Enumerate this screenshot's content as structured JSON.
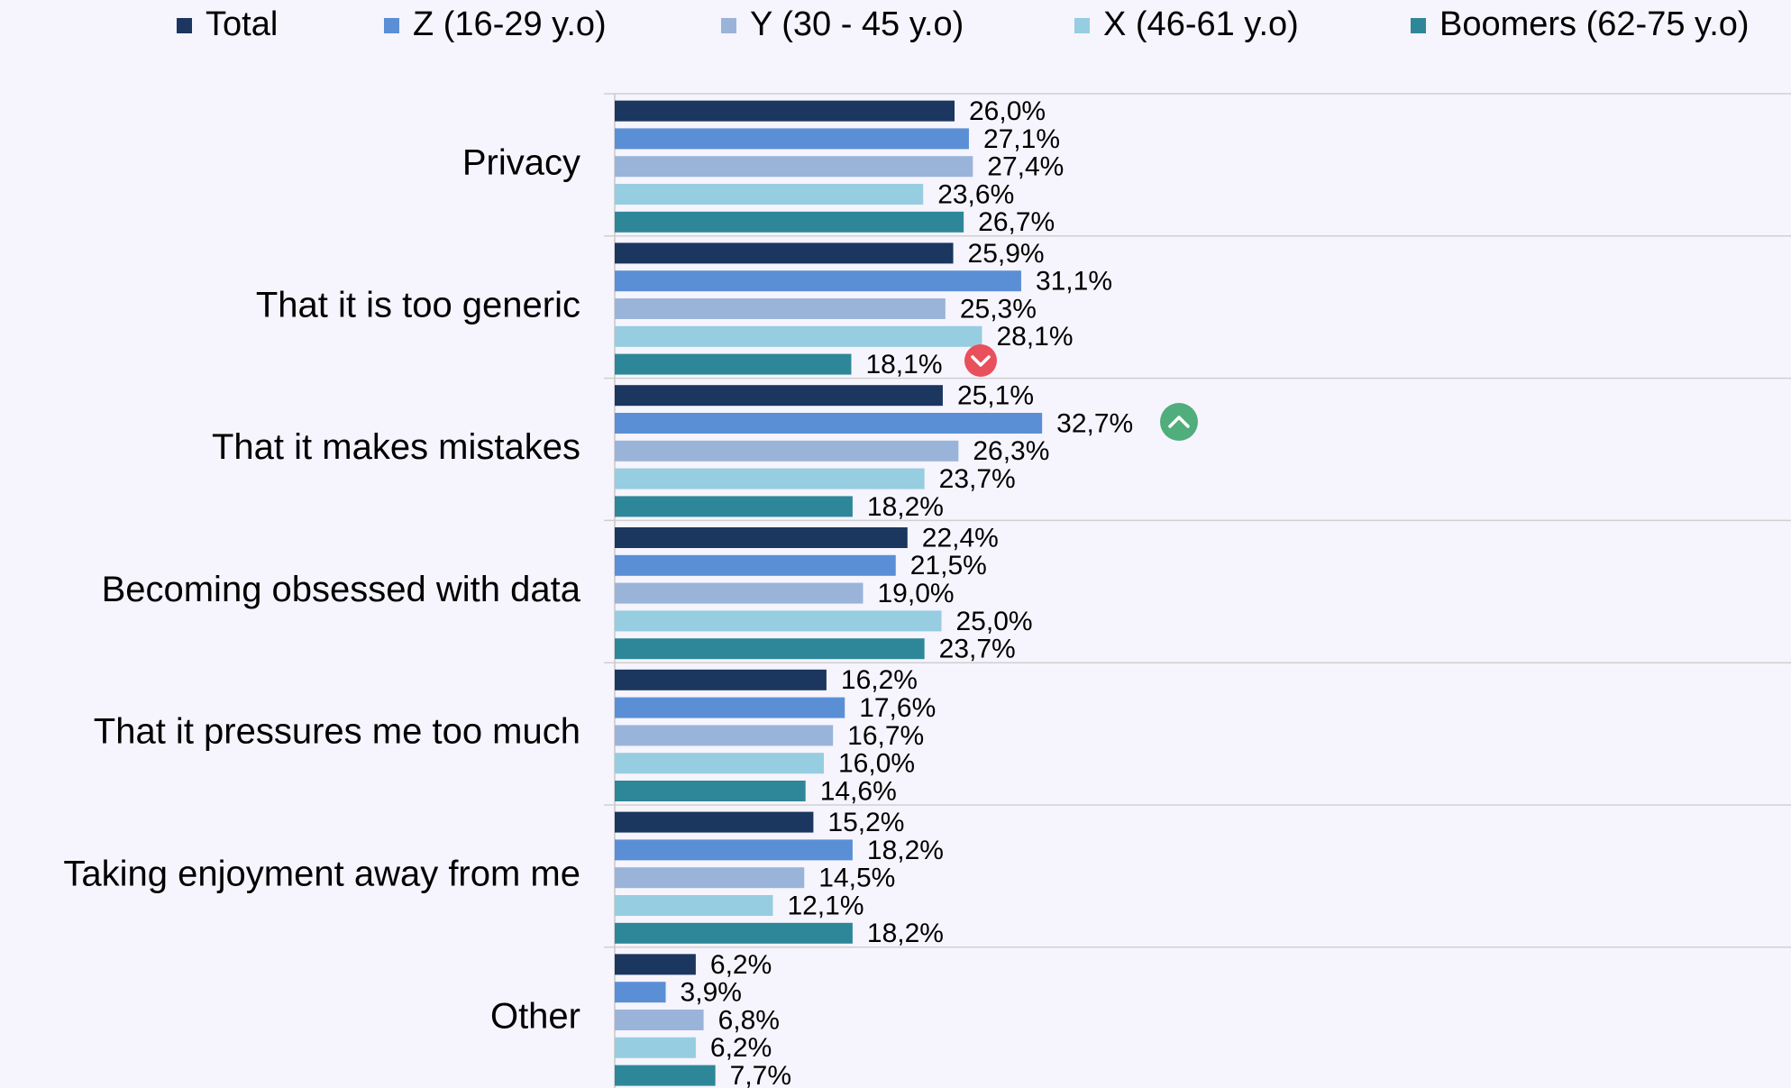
{
  "chart_data": {
    "type": "bar",
    "orientation": "horizontal",
    "categories": [
      "Privacy",
      "That it is too generic",
      "That it makes mistakes",
      "Becoming obsessed with data",
      "That it pressures me too much",
      "Taking enjoyment away from me",
      "Other"
    ],
    "series": [
      {
        "name": "Total",
        "color": "#1b365f",
        "values": [
          26.0,
          25.9,
          25.1,
          22.4,
          16.2,
          15.2,
          6.2
        ],
        "value_labels": [
          "26,0%",
          "25,9%",
          "25,1%",
          "22,4%",
          "16,2%",
          "15,2%",
          "6,2%"
        ]
      },
      {
        "name": "Z (16-29 y.o)",
        "color": "#5a8fd6",
        "values": [
          27.1,
          31.1,
          32.7,
          21.5,
          17.6,
          18.2,
          3.9
        ],
        "value_labels": [
          "27,1%",
          "31,1%",
          "32,7%",
          "21,5%",
          "17,6%",
          "18,2%",
          "3,9%"
        ]
      },
      {
        "name": "Y (30 - 45 y.o)",
        "color": "#9ab4d9",
        "values": [
          27.4,
          25.3,
          26.3,
          19.0,
          16.7,
          14.5,
          6.8
        ],
        "value_labels": [
          "27,4%",
          "25,3%",
          "26,3%",
          "19,0%",
          "16,7%",
          "14,5%",
          "6,8%"
        ]
      },
      {
        "name": "X (46-61 y.o)",
        "color": "#96cde0",
        "values": [
          23.6,
          28.1,
          23.7,
          25.0,
          16.0,
          12.1,
          6.2
        ],
        "value_labels": [
          "23,6%",
          "28,1%",
          "23,7%",
          "25,0%",
          "16,0%",
          "12,1%",
          "6,2%"
        ]
      },
      {
        "name": "Boomers (62-75 y.o)",
        "color": "#2e8799",
        "values": [
          26.7,
          18.1,
          18.2,
          23.7,
          14.6,
          18.2,
          7.7
        ],
        "value_labels": [
          "26,7%",
          "18,1%",
          "18,2%",
          "23,7%",
          "14,6%",
          "18,2%",
          "7,7%"
        ]
      }
    ],
    "xlim": [
      0,
      90
    ],
    "legend": "top",
    "grid": true
  }
}
